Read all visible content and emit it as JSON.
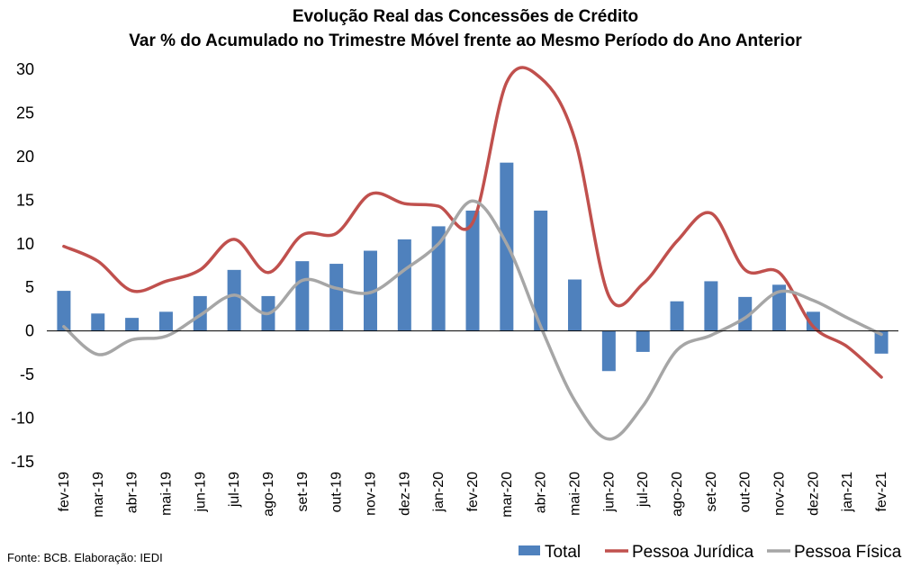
{
  "chart_data": {
    "type": "bar",
    "title": "Evolução Real das Concessões de Crédito",
    "subtitle": "Var % do Acumulado no Trimestre Móvel frente ao Mesmo Período do Ano Anterior",
    "categories": [
      "fev-19",
      "mar-19",
      "abr-19",
      "mai-19",
      "jun-19",
      "jul-19",
      "ago-19",
      "set-19",
      "out-19",
      "nov-19",
      "dez-19",
      "jan-20",
      "fev-20",
      "mar-20",
      "abr-20",
      "mai-20",
      "jun-20",
      "jul-20",
      "ago-20",
      "set-20",
      "out-20",
      "nov-20",
      "dez-20",
      "jan-21",
      "fev-21"
    ],
    "ylim": [
      -15,
      30
    ],
    "yticks": [
      -15,
      -10,
      -5,
      0,
      5,
      10,
      15,
      20,
      25,
      30
    ],
    "ytick_labels": [
      "-15",
      "-10",
      "-5",
      "0",
      "5",
      "10",
      "15",
      "20",
      "25",
      "30"
    ],
    "grid": false,
    "legend_position": "bottom-right",
    "series": [
      {
        "name": "Total",
        "kind": "bar",
        "color": "#4f81bd",
        "values": [
          4.6,
          2.0,
          1.5,
          2.2,
          4.0,
          7.0,
          4.0,
          8.0,
          7.7,
          9.2,
          10.5,
          12.0,
          13.8,
          19.3,
          13.8,
          5.9,
          -4.6,
          -2.4,
          3.4,
          5.7,
          3.9,
          5.3,
          2.2,
          null,
          -2.6
        ]
      },
      {
        "name": "Pessoa Jurídica",
        "kind": "line",
        "color": "#c0504d",
        "values": [
          9.7,
          8.0,
          4.6,
          5.7,
          7.0,
          10.5,
          6.7,
          11.0,
          11.2,
          15.7,
          14.6,
          14.3,
          12.4,
          28.5,
          29.0,
          22.0,
          4.0,
          5.4,
          10.3,
          13.5,
          7.0,
          6.7,
          0.5,
          -1.8,
          -5.3
        ]
      },
      {
        "name": "Pessoa Física",
        "kind": "line",
        "color": "#a6a6a6",
        "values": [
          0.5,
          -2.7,
          -1.0,
          -0.6,
          1.8,
          4.1,
          2.0,
          5.8,
          4.9,
          4.4,
          7.0,
          10.0,
          14.9,
          10.0,
          0.5,
          -8.0,
          -12.4,
          -8.6,
          -2.2,
          -0.5,
          1.5,
          4.5,
          3.5,
          1.5,
          -0.4
        ]
      }
    ],
    "source": "Fonte: BCB. Elaboração: IEDI"
  }
}
